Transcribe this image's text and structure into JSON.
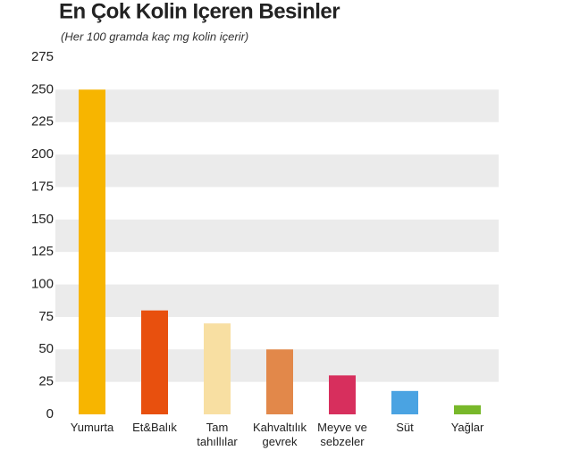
{
  "chart_data": {
    "type": "bar",
    "title": "En Çok Kolin Içeren Besinler",
    "subtitle": "(Her 100 gramda kaç mg kolin içerir)",
    "categories": [
      "Yumurta",
      "Et&Balık",
      "Tam tahıllılar",
      "Kahvaltılık gevrek",
      "Meyve ve sebzeler",
      "Süt",
      "Yağlar"
    ],
    "values": [
      250,
      80,
      70,
      50,
      30,
      18,
      7
    ],
    "colors": [
      "#f7b500",
      "#e8500e",
      "#f8dfa2",
      "#e2884a",
      "#d72f5d",
      "#4aa3e2",
      "#78b82a"
    ],
    "ylim": [
      0,
      275
    ],
    "yticks": [
      0,
      25,
      50,
      75,
      100,
      125,
      150,
      175,
      200,
      225,
      250,
      275
    ],
    "grid": "bands"
  }
}
